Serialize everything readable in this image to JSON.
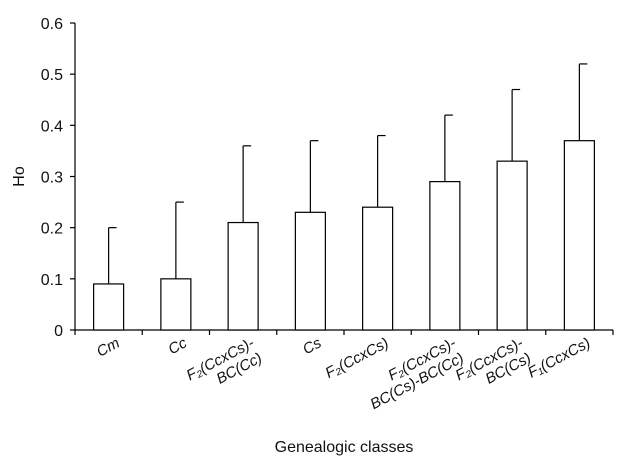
{
  "chart_data": {
    "type": "bar",
    "xlabel": "Genealogic classes",
    "ylabel": "Ho",
    "ylim": [
      0,
      0.6
    ],
    "yticks": [
      "0",
      "0.1",
      "0.2",
      "0.3",
      "0.4",
      "0.5",
      "0.6"
    ],
    "categories": [
      {
        "main": "Cm",
        "sub": "",
        "lines": [
          "Cm"
        ]
      },
      {
        "main": "Cc",
        "sub": "",
        "lines": [
          "Cc"
        ]
      },
      {
        "lines": [
          "F₂(CcxCs)-",
          "BC(Cc)"
        ]
      },
      {
        "lines": [
          "Cs"
        ]
      },
      {
        "lines": [
          "F₂(CcxCs)"
        ]
      },
      {
        "lines": [
          "F₂(CcxCs)-",
          "BC(Cs)-BC(Cc)"
        ]
      },
      {
        "lines": [
          "F₂(CcxCs)-",
          "BC(Cs)"
        ]
      },
      {
        "lines": [
          "F₁(CcxCs)"
        ]
      }
    ],
    "values": [
      0.09,
      0.1,
      0.21,
      0.23,
      0.24,
      0.29,
      0.33,
      0.37
    ],
    "error_upper": [
      0.2,
      0.25,
      0.36,
      0.37,
      0.38,
      0.42,
      0.47,
      0.52
    ],
    "grid": false,
    "legend": "none"
  }
}
